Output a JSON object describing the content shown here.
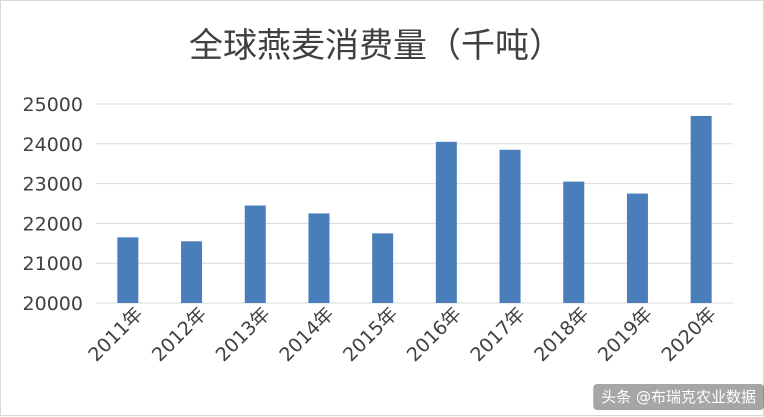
{
  "chart_data": {
    "type": "bar",
    "title": "全球燕麦消费量（千吨）",
    "categories": [
      "2011年",
      "2012年",
      "2013年",
      "2014年",
      "2015年",
      "2016年",
      "2017年",
      "2018年",
      "2019年",
      "2020年"
    ],
    "values": [
      21650,
      21550,
      22450,
      22250,
      21750,
      24050,
      23850,
      23050,
      22750,
      24700
    ],
    "ylim": [
      20000,
      25000
    ],
    "yticks": [
      "20000",
      "21000",
      "22000",
      "23000",
      "24000",
      "25000"
    ],
    "grid": true,
    "bar_color": "#4a7ebb",
    "grid_color": "#d9d9d9"
  },
  "watermark": {
    "text": "头条 @布瑞克农业数据"
  }
}
